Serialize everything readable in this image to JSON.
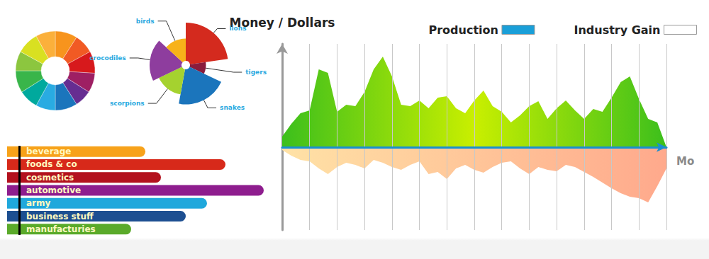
{
  "chart_data": [
    {
      "type": "pie",
      "categories": [
        null,
        null,
        null,
        null,
        null,
        null,
        null,
        null,
        null,
        null,
        null,
        null
      ],
      "values": [
        9,
        8,
        9,
        8,
        7,
        9,
        8,
        8,
        9,
        8,
        9,
        8
      ],
      "colors": [
        "#f7941d",
        "#f15a24",
        "#d7191c",
        "#9e1f63",
        "#662d91",
        "#1b75bc",
        "#29abe2",
        "#00a99d",
        "#39b54a",
        "#8cc63f",
        "#d9e021",
        "#fbb03b"
      ]
    },
    {
      "type": "rose",
      "categories": [
        "lions",
        "tigers",
        "snakes",
        "scorpions",
        "crocodiles",
        "birds"
      ],
      "values": [
        60,
        25,
        55,
        40,
        50,
        35
      ],
      "colors": [
        "#d42a1e",
        "#8a1c3c",
        "#1b75bc",
        "#a5d22f",
        "#8e3d9e",
        "#f7b21a"
      ]
    },
    {
      "type": "bar",
      "orientation": "horizontal",
      "categories": [
        "beverage",
        "foods & co",
        "cosmetics",
        "automotive",
        "army",
        "business stuff",
        "manufacturies"
      ],
      "values": [
        195,
        308,
        217,
        362,
        282,
        252,
        175
      ],
      "colors": [
        "#f7a21a",
        "#d7291a",
        "#b3121e",
        "#8e1d8e",
        "#1fa8dc",
        "#1d4f91",
        "#5aaa2a"
      ],
      "tick_labels": "y"
    },
    {
      "type": "area",
      "ylabel": "Money / Dollars",
      "xlabel": "Mo",
      "categories": [
        null,
        null,
        null,
        null,
        null,
        null,
        null,
        null,
        null,
        null,
        null,
        null,
        null,
        null,
        null,
        null,
        null,
        null,
        null,
        null,
        null,
        null,
        null,
        null,
        null,
        null,
        null,
        null,
        null,
        null,
        null,
        null,
        null,
        null,
        null,
        null,
        null,
        null,
        null,
        null,
        null,
        null,
        null
      ],
      "series": [
        {
          "name": "Production",
          "color": "#1a9fd8",
          "values": [
            15,
            33,
            48,
            52,
            110,
            105,
            50,
            60,
            58,
            78,
            110,
            128,
            100,
            60,
            58,
            66,
            55,
            70,
            72,
            55,
            48,
            66,
            80,
            58,
            50,
            35,
            45,
            58,
            65,
            40,
            55,
            66,
            52,
            40,
            54,
            50,
            70,
            92,
            100,
            68,
            40,
            35,
            0
          ]
        },
        {
          "name": "Industry Gain",
          "color": "#ffffff",
          "values": [
            -4,
            -12,
            -18,
            -20,
            -30,
            -38,
            -28,
            -22,
            -25,
            -30,
            -18,
            -22,
            -28,
            -32,
            -25,
            -20,
            -38,
            -35,
            -45,
            -30,
            -25,
            -32,
            -36,
            -28,
            -22,
            -20,
            -30,
            -38,
            -28,
            -32,
            -34,
            -25,
            -28,
            -35,
            -42,
            -50,
            -58,
            -65,
            -70,
            -72,
            -78,
            -55,
            -30
          ]
        }
      ],
      "ylim": [
        -117,
        146
      ],
      "grid": true,
      "legend": "top-right",
      "tick_labels": false
    }
  ]
}
